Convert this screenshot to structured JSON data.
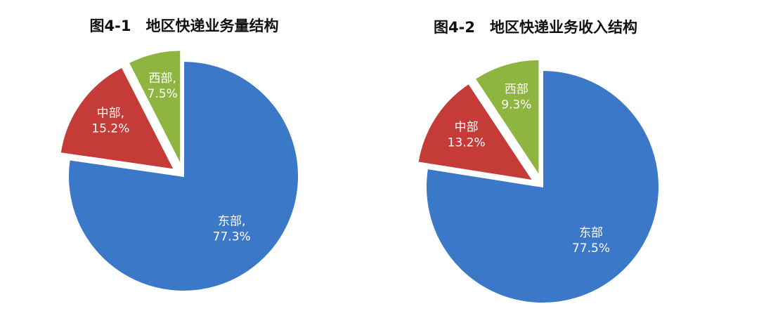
{
  "chart_data": [
    {
      "type": "pie",
      "title": "图4-1　地区快递业务量结构",
      "categories": [
        "东部,",
        "中部,",
        "西部,"
      ],
      "values": [
        77.3,
        15.2,
        7.5
      ],
      "value_labels": [
        "77.3%",
        "15.2%",
        "7.5%"
      ],
      "colors": [
        "#3b78c8",
        "#c43b38",
        "#8db53f"
      ]
    },
    {
      "type": "pie",
      "title": "图4-2　地区快递业务收入结构",
      "categories": [
        "东部",
        "中部",
        "西部"
      ],
      "values": [
        77.5,
        13.2,
        9.3
      ],
      "value_labels": [
        "77.5%",
        "13.2%",
        "9.3%"
      ],
      "colors": [
        "#3b78c8",
        "#c43b38",
        "#8db53f"
      ]
    }
  ]
}
